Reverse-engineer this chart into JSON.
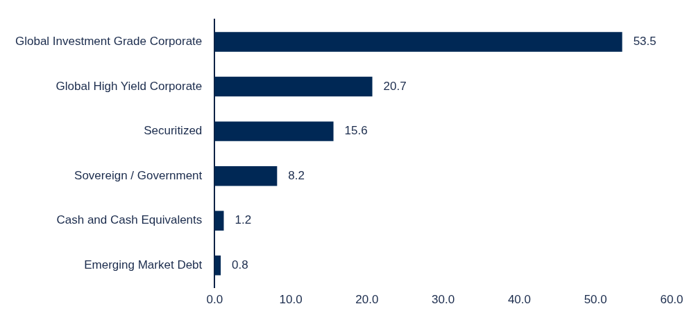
{
  "chart_data": {
    "type": "bar",
    "orientation": "horizontal",
    "categories": [
      "Global Investment Grade Corporate",
      "Global High Yield Corporate",
      "Securitized",
      "Sovereign / Government",
      "Cash and Cash Equivalents",
      "Emerging Market Debt"
    ],
    "values": [
      53.5,
      20.7,
      15.6,
      8.2,
      1.2,
      0.8
    ],
    "color": "#002855",
    "xlim": [
      0,
      60
    ],
    "xticks": [
      {
        "value": 0,
        "label": "0.0"
      },
      {
        "value": 10,
        "label": "10.0"
      },
      {
        "value": 20,
        "label": "20.0"
      },
      {
        "value": 30,
        "label": "30.0"
      },
      {
        "value": 40,
        "label": "40.0"
      },
      {
        "value": 50,
        "label": "50.0"
      },
      {
        "value": 60,
        "label": "60.0"
      }
    ],
    "grid": false,
    "legend": false,
    "data_labels": true
  }
}
